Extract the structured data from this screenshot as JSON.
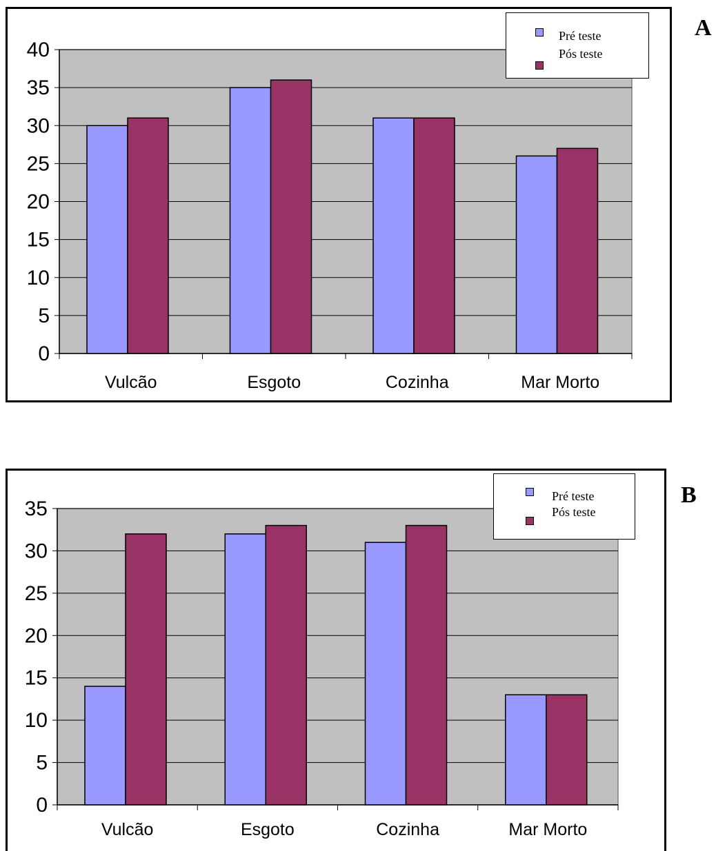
{
  "panels": [
    {
      "letter": "A"
    },
    {
      "letter": "B"
    }
  ],
  "colors": {
    "pre": "#9999ff",
    "post": "#993366",
    "plot_bg": "#c0c0c0",
    "grid": "#000000"
  },
  "chart_data": [
    {
      "type": "bar",
      "title": "",
      "xlabel": "",
      "ylabel": "",
      "categories": [
        "Vulcão",
        "Esgoto",
        "Cozinha",
        "Mar Morto"
      ],
      "series": [
        {
          "name": "Pré teste",
          "values": [
            30,
            35,
            31,
            26
          ]
        },
        {
          "name": "Pós teste",
          "values": [
            31,
            36,
            31,
            27
          ]
        }
      ],
      "ylim": [
        0,
        40
      ],
      "yticks": [
        0,
        5,
        10,
        15,
        20,
        25,
        30,
        35,
        40
      ],
      "grid": true,
      "legend_position": "top-right"
    },
    {
      "type": "bar",
      "title": "",
      "xlabel": "",
      "ylabel": "",
      "categories": [
        "Vulcão",
        "Esgoto",
        "Cozinha",
        "Mar Morto"
      ],
      "series": [
        {
          "name": "Pré teste",
          "values": [
            14,
            32,
            31,
            13
          ]
        },
        {
          "name": "Pós teste",
          "values": [
            32,
            33,
            33,
            13
          ]
        }
      ],
      "ylim": [
        0,
        35
      ],
      "yticks": [
        0,
        5,
        10,
        15,
        20,
        25,
        30,
        35
      ],
      "grid": true,
      "legend_position": "top-right"
    }
  ]
}
